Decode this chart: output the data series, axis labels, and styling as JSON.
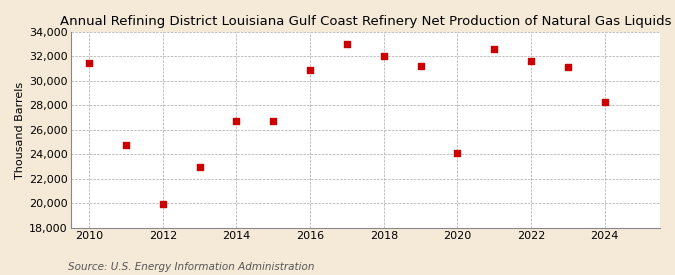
{
  "title": "Annual Refining District Louisiana Gulf Coast Refinery Net Production of Natural Gas Liquids",
  "ylabel": "Thousand Barrels",
  "source": "Source: U.S. Energy Information Administration",
  "background_color": "#f5ead8",
  "plot_bg_color": "#ffffff",
  "years": [
    2010,
    2011,
    2012,
    2013,
    2014,
    2015,
    2016,
    2017,
    2018,
    2019,
    2020,
    2021,
    2022,
    2023,
    2024
  ],
  "values": [
    31500,
    24800,
    19950,
    23000,
    26700,
    26700,
    30900,
    33000,
    32000,
    31200,
    24150,
    32600,
    31600,
    31100,
    28300
  ],
  "marker_color": "#cc0000",
  "marker_size": 5,
  "ylim": [
    18000,
    34000
  ],
  "yticks": [
    18000,
    20000,
    22000,
    24000,
    26000,
    28000,
    30000,
    32000,
    34000
  ],
  "xlim": [
    2009.5,
    2025.5
  ],
  "xticks": [
    2010,
    2012,
    2014,
    2016,
    2018,
    2020,
    2022,
    2024
  ],
  "title_fontsize": 9.5,
  "axis_fontsize": 8,
  "source_fontsize": 7.5,
  "ylabel_fontsize": 8
}
